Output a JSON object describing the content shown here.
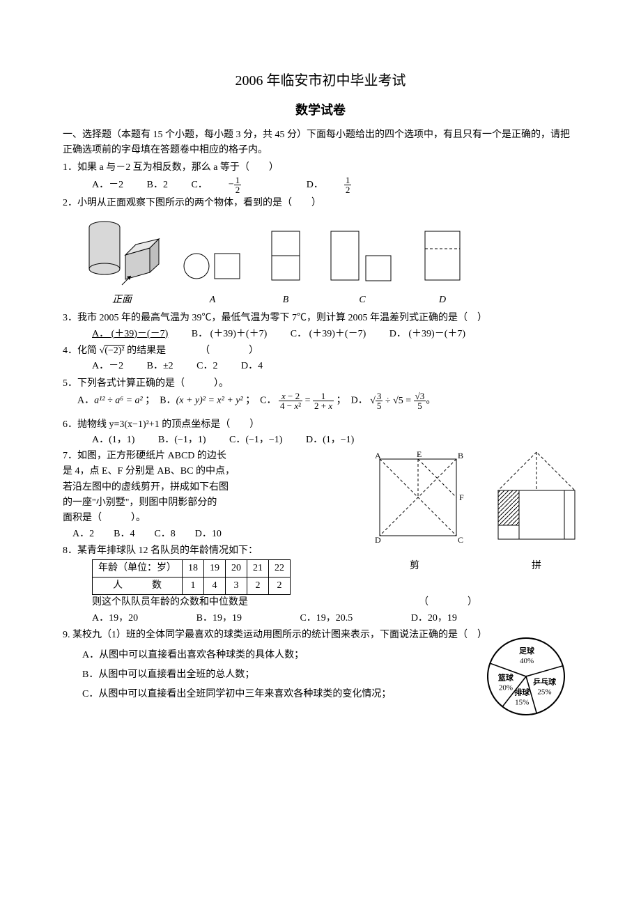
{
  "title": "2006 年临安市初中毕业考试",
  "subtitle": "数学试卷",
  "section1": "一、选择题（本题有 15 个小题，每小题 3 分，共 45 分）下面每小题给出的四个选项中，有且只有一个是正确的，请把正确选项前的字母填在答题卷中相应的格子内。",
  "q1": {
    "text": "1．如果 a 与－2 互为相反数，那么 a 等于（　　）",
    "A": "A．－2",
    "B": "B．2",
    "C_pre": "C．",
    "D_pre": "D．",
    "Cnum": "1",
    "Cden": "2",
    "Dnum": "1",
    "Dden": "2"
  },
  "q2": {
    "text": "2．小明从正面观察下图所示的两个物体，看到的是（　　）",
    "front_label": "正面",
    "labels": [
      "A",
      "B",
      "C",
      "D"
    ],
    "colors": {
      "cyl_fill": "#d8d8d8",
      "cube_fill": "#cfcfcf",
      "stroke": "#000"
    }
  },
  "q3": {
    "text": "3．我市 2005 年的最高气温为 39℃，最低气温为零下 7℃，则计算 2005 年温差列式正确的是（　）",
    "A": "A． (＋39)－(－7)",
    "B": "B． (＋39)＋(＋7)",
    "C": "C． (＋39)＋(－7)",
    "D": "D． (＋39)－(＋7)"
  },
  "q4": {
    "text_pre": "4．化简",
    "text_post": "的结果是　　　　（　　　　）",
    "A": "A．－2",
    "B": "B．±2",
    "C": "C．2",
    "D": "D．4"
  },
  "q5": {
    "text": "5．下列各式计算正确的是（　　　）。",
    "A_pre": "A．",
    "A_body": "a¹² ÷ a⁶ = a²",
    "B_pre": "；　B．",
    "B_body": "(x + y)² = x² + y²",
    "C_pre": "；　C．",
    "D_pre": "；　D．"
  },
  "q6": {
    "text": "6．抛物线 y=3(x−1)²+1 的顶点坐标是（　　）",
    "A": "A．(1，1)",
    "B": "B．(−1，1)",
    "C": "C．(−1，−1)",
    "D": "D．(1，−1)"
  },
  "q7": {
    "l1": "7．如图，正方形硬纸片 ABCD 的边长",
    "l2": "是 4，点 E、F 分别是 AB、BC 的中点，",
    "l3": "若沿左图中的虚线剪开，拼成如下右图",
    "l4": "的一座\"小别墅\"，则图中阴影部分的",
    "l5": "面积是（　　　）。",
    "opts": "　A．2　　B．4　　C．8　　D．10",
    "labA": "A",
    "labB": "B",
    "labC": "C",
    "labD": "D",
    "labE": "E",
    "labF": "F",
    "cut": "剪",
    "join": "拼",
    "hatch": "#808080"
  },
  "q8": {
    "text": "8．某青年排球队 12 名队员的年龄情况如下：",
    "h1": "年龄（单位：岁）",
    "c1": "18",
    "c2": "19",
    "c3": "20",
    "c4": "21",
    "c5": "22",
    "h2": "人　　　数",
    "d1": "1",
    "d2": "4",
    "d3": "3",
    "d4": "2",
    "d5": "2",
    "tail": "则这个队队员年龄的众数和中位数是　　　　　　　　　　　　　　　　　　（　　　　）",
    "A": "A．19，20",
    "B": "B．19，19",
    "C": "C．19，20.5",
    "D": "D．20，19"
  },
  "q9": {
    "text": "9. 某校九（1）班的全体同学最喜欢的球类运动用图所示的统计图来表示，下面说法正确的是（　）",
    "A": "A．从图中可以直接看出喜欢各种球类的具体人数；",
    "B": "B．从图中可以直接看出全班的总人数；",
    "C": "C．从图中可以直接看出全班同学初中三年来喜欢各种球类的变化情况；",
    "pie": {
      "slices": [
        {
          "label": "足球",
          "pct": "40%",
          "value": 40,
          "color": "#ffffff"
        },
        {
          "label": "乒乓球",
          "pct": "25%",
          "value": 25,
          "color": "#ffffff"
        },
        {
          "label": "排球",
          "pct": "15%",
          "value": 15,
          "color": "#ffffff"
        },
        {
          "label": "篮球",
          "pct": "20%",
          "value": 20,
          "color": "#ffffff"
        }
      ],
      "stroke": "#000"
    }
  }
}
